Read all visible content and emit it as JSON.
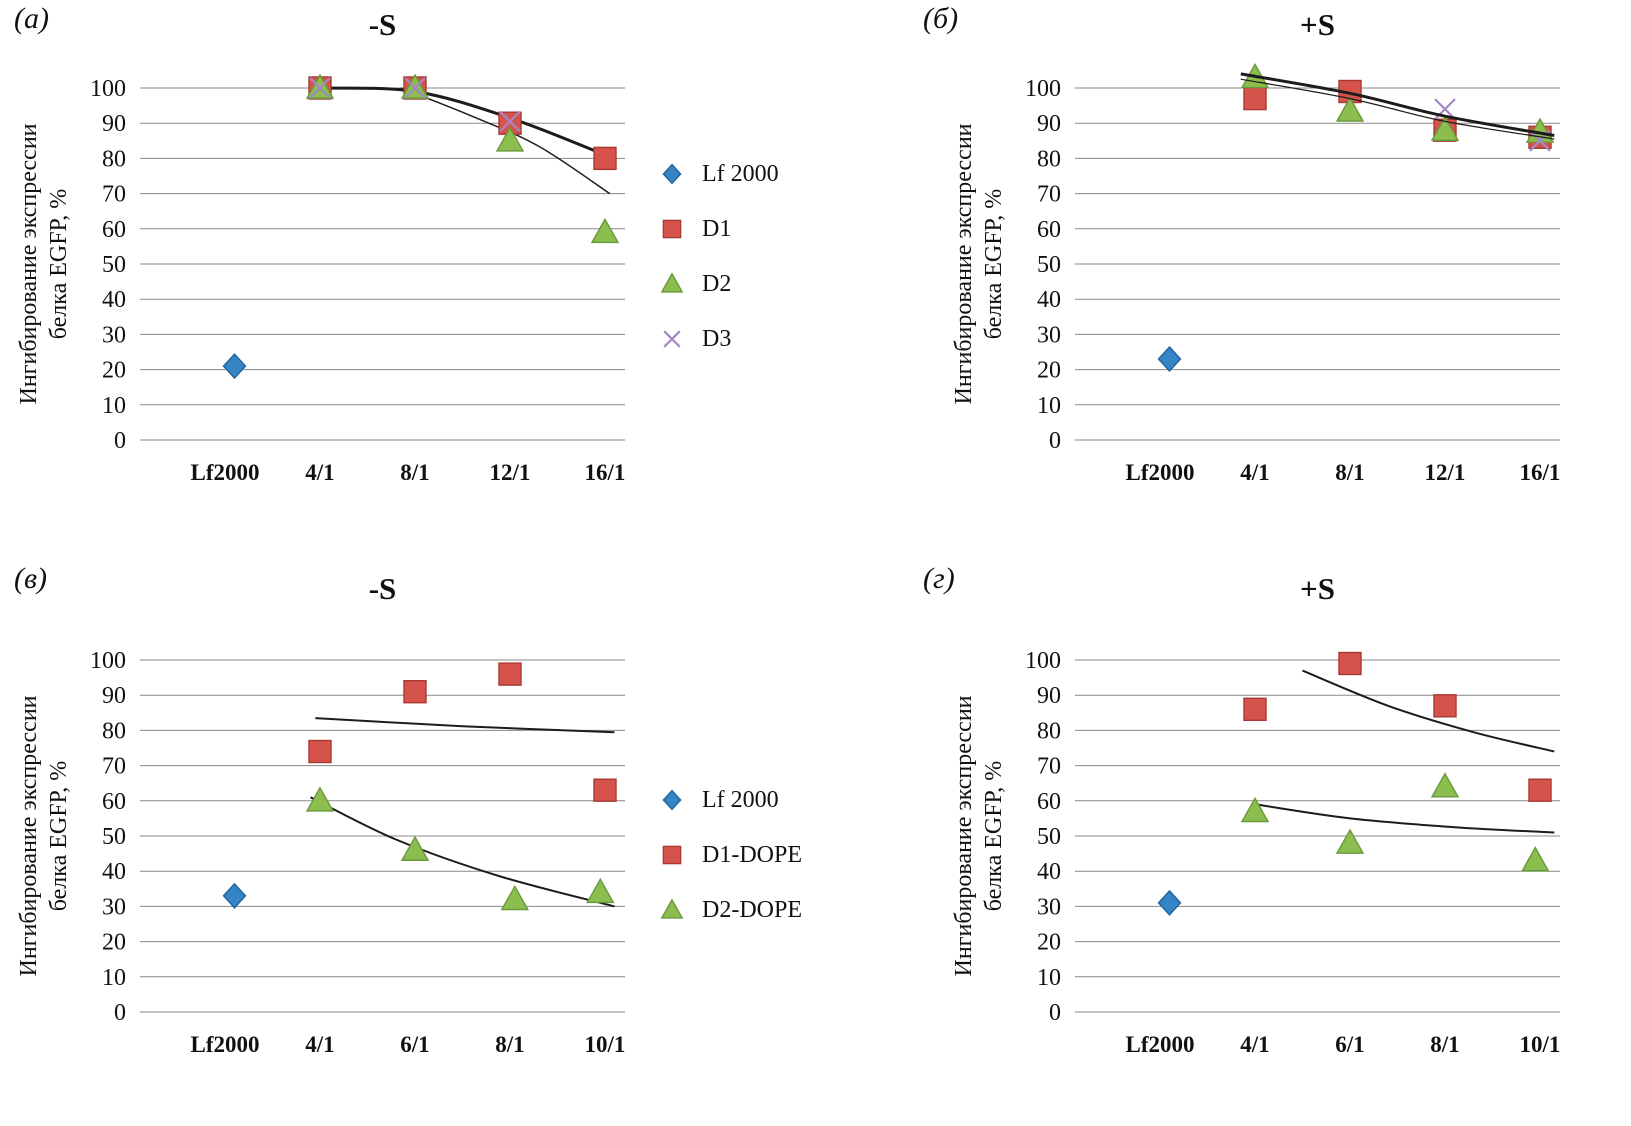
{
  "figure_type": "scatter-panel-grid",
  "chart_data": [
    {
      "type": "scatter",
      "panel_label": "(а)",
      "title": "-S",
      "ylabel": "Ингибирование экспрессии белка EGFP, %",
      "ylabel_lines": [
        "Ингибирование экспрессии",
        "белка EGFP, %"
      ],
      "categories": [
        "Lf2000",
        "4/1",
        "8/1",
        "12/1",
        "16/1"
      ],
      "ylim": [
        0,
        100
      ],
      "ytick_step": 10,
      "grid": "horizontal",
      "legend": true,
      "lines_on_top": false,
      "series": [
        {
          "name": "Lf 2000",
          "marker": "diamond",
          "color": "#3584c6",
          "stroke": "#20639c",
          "points": [
            {
              "x": 0.1,
              "y": 21
            }
          ]
        },
        {
          "name": "D1",
          "marker": "square",
          "color": "#d6534b",
          "stroke": "#a83832",
          "points": [
            {
              "x": 1,
              "y": 100
            },
            {
              "x": 2,
              "y": 100
            },
            {
              "x": 3,
              "y": 90
            },
            {
              "x": 4,
              "y": 80
            }
          ]
        },
        {
          "name": "D2",
          "marker": "triangle",
          "color": "#8bbd4f",
          "stroke": "#68993a",
          "points": [
            {
              "x": 1,
              "y": 100
            },
            {
              "x": 2,
              "y": 100
            },
            {
              "x": 3,
              "y": 85
            },
            {
              "x": 4,
              "y": 59
            }
          ]
        },
        {
          "name": "D3",
          "marker": "x",
          "color": "#a487c4",
          "stroke": "#a487c4",
          "points": [
            {
              "x": 1,
              "y": 100
            },
            {
              "x": 2,
              "y": 100
            },
            {
              "x": 3,
              "y": 90.5
            }
          ]
        }
      ],
      "trendlines": [
        {
          "width": 3,
          "points": [
            {
              "x": 1,
              "y": 100
            },
            {
              "x": 2,
              "y": 99
            },
            {
              "x": 3,
              "y": 91.5
            },
            {
              "x": 4,
              "y": 81
            }
          ]
        },
        {
          "width": 1.5,
          "points": [
            {
              "x": 1.85,
              "y": 100
            },
            {
              "x": 2.6,
              "y": 92
            },
            {
              "x": 3.3,
              "y": 83.5
            },
            {
              "x": 4.05,
              "y": 70
            }
          ]
        }
      ]
    },
    {
      "type": "scatter",
      "panel_label": "(б)",
      "title": "+S",
      "ylabel": "Ингибирование экспрессии белка EGFP, %",
      "ylabel_lines": [
        "Ингибирование экспрессии",
        "белка EGFP, %"
      ],
      "categories": [
        "Lf2000",
        "4/1",
        "8/1",
        "12/1",
        "16/1"
      ],
      "ylim": [
        0,
        100
      ],
      "ytick_step": 10,
      "grid": "horizontal",
      "legend": false,
      "lines_on_top": true,
      "series": [
        {
          "name": "Lf 2000",
          "marker": "diamond",
          "color": "#3584c6",
          "stroke": "#20639c",
          "points": [
            {
              "x": 0.1,
              "y": 23
            }
          ]
        },
        {
          "name": "D1",
          "marker": "square",
          "color": "#d6534b",
          "stroke": "#a83832",
          "points": [
            {
              "x": 1,
              "y": 97
            },
            {
              "x": 2,
              "y": 99
            },
            {
              "x": 3,
              "y": 88
            },
            {
              "x": 4,
              "y": 86
            }
          ]
        },
        {
          "name": "D2",
          "marker": "triangle",
          "color": "#8bbd4f",
          "stroke": "#68993a",
          "points": [
            {
              "x": 1,
              "y": 103
            },
            {
              "x": 2,
              "y": 93.5
            },
            {
              "x": 3,
              "y": 88
            },
            {
              "x": 4,
              "y": 87.5
            }
          ]
        },
        {
          "name": "D3",
          "marker": "x",
          "color": "#a487c4",
          "stroke": "#a487c4",
          "points": [
            {
              "x": 3,
              "y": 94
            },
            {
              "x": 4,
              "y": 85
            }
          ]
        }
      ],
      "trendlines": [
        {
          "width": 3,
          "points": [
            {
              "x": 0.85,
              "y": 104
            },
            {
              "x": 2,
              "y": 98.5
            },
            {
              "x": 3,
              "y": 92
            },
            {
              "x": 4.15,
              "y": 86.5
            }
          ]
        },
        {
          "width": 1.2,
          "points": [
            {
              "x": 0.85,
              "y": 102.5
            },
            {
              "x": 2,
              "y": 97
            },
            {
              "x": 3,
              "y": 90.5
            },
            {
              "x": 4.15,
              "y": 85.5
            }
          ]
        }
      ]
    },
    {
      "type": "scatter",
      "panel_label": "(в)",
      "title": "-S",
      "ylabel": "Ингибирование экспрессии белка EGFP, %",
      "ylabel_lines": [
        "Ингибирование экспрессии",
        "белка EGFP, %"
      ],
      "categories": [
        "Lf2000",
        "4/1",
        "6/1",
        "8/1",
        "10/1"
      ],
      "ylim": [
        0,
        100
      ],
      "ytick_step": 10,
      "grid": "horizontal",
      "legend": true,
      "lines_on_top": false,
      "series": [
        {
          "name": "Lf 2000",
          "marker": "diamond",
          "color": "#3584c6",
          "stroke": "#20639c",
          "points": [
            {
              "x": 0.1,
              "y": 33
            }
          ]
        },
        {
          "name": "D1-DOPE",
          "marker": "square",
          "color": "#d6534b",
          "stroke": "#a83832",
          "points": [
            {
              "x": 1,
              "y": 74
            },
            {
              "x": 2,
              "y": 91
            },
            {
              "x": 3,
              "y": 96
            },
            {
              "x": 4,
              "y": 63
            }
          ]
        },
        {
          "name": "D2-DOPE",
          "marker": "triangle",
          "color": "#8bbd4f",
          "stroke": "#68993a",
          "points": [
            {
              "x": 1,
              "y": 60
            },
            {
              "x": 2,
              "y": 46
            },
            {
              "x": 3.05,
              "y": 32
            },
            {
              "x": 3.95,
              "y": 34
            }
          ]
        }
      ],
      "trendlines": [
        {
          "width": 2,
          "points": [
            {
              "x": 0.95,
              "y": 83.5
            },
            {
              "x": 2.5,
              "y": 81.2
            },
            {
              "x": 4.1,
              "y": 79.5
            }
          ]
        },
        {
          "width": 2,
          "points": [
            {
              "x": 0.9,
              "y": 61
            },
            {
              "x": 1.8,
              "y": 49
            },
            {
              "x": 2.9,
              "y": 38.5
            },
            {
              "x": 4.1,
              "y": 30
            }
          ]
        }
      ]
    },
    {
      "type": "scatter",
      "panel_label": "(г)",
      "title": "+S",
      "ylabel": "Ингибирование экспрессии белка EGFP, %",
      "ylabel_lines": [
        "Ингибирование экспрессии",
        "белка EGFP, %"
      ],
      "categories": [
        "Lf2000",
        "4/1",
        "6/1",
        "8/1",
        "10/1"
      ],
      "ylim": [
        0,
        100
      ],
      "ytick_step": 10,
      "grid": "horizontal",
      "legend": false,
      "lines_on_top": false,
      "series": [
        {
          "name": "Lf 2000",
          "marker": "diamond",
          "color": "#3584c6",
          "stroke": "#20639c",
          "points": [
            {
              "x": 0.1,
              "y": 31
            }
          ]
        },
        {
          "name": "D1-DOPE",
          "marker": "square",
          "color": "#d6534b",
          "stroke": "#a83832",
          "points": [
            {
              "x": 1,
              "y": 86
            },
            {
              "x": 2,
              "y": 99
            },
            {
              "x": 3,
              "y": 87
            },
            {
              "x": 4,
              "y": 63
            }
          ]
        },
        {
          "name": "D2-DOPE",
          "marker": "triangle",
          "color": "#8bbd4f",
          "stroke": "#68993a",
          "points": [
            {
              "x": 1,
              "y": 57
            },
            {
              "x": 2,
              "y": 48
            },
            {
              "x": 3,
              "y": 64
            },
            {
              "x": 3.95,
              "y": 43
            }
          ]
        }
      ],
      "trendlines": [
        {
          "width": 2,
          "points": [
            {
              "x": 1.5,
              "y": 97
            },
            {
              "x": 2.4,
              "y": 87
            },
            {
              "x": 3.3,
              "y": 79.5
            },
            {
              "x": 4.15,
              "y": 74
            }
          ]
        },
        {
          "width": 2,
          "points": [
            {
              "x": 1.0,
              "y": 59
            },
            {
              "x": 2.0,
              "y": 55
            },
            {
              "x": 3.1,
              "y": 52.5
            },
            {
              "x": 4.15,
              "y": 51
            }
          ]
        }
      ]
    }
  ]
}
